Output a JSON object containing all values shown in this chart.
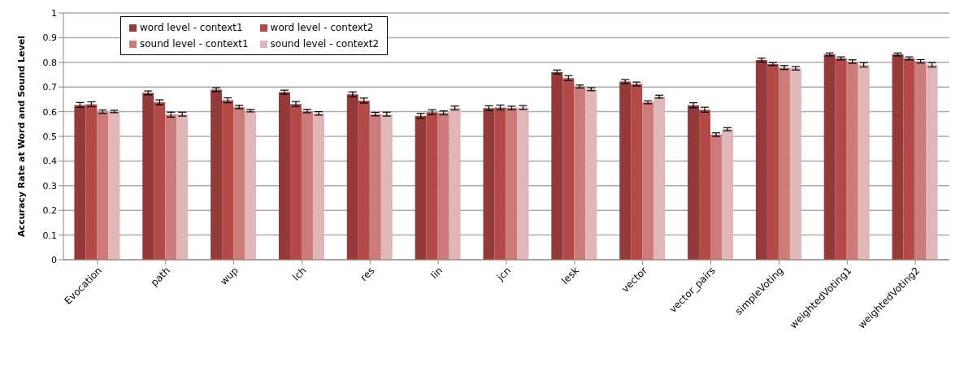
{
  "chart_data": {
    "type": "bar",
    "ylabel": "Accuracy Rate at Word and Sound Level",
    "categories": [
      "Evocation",
      "path",
      "wup",
      "lch",
      "res",
      "lin",
      "jcn",
      "lesk",
      "vector",
      "vector_pairs",
      "simpleVoting",
      "weightedVoting1",
      "weightedVoting2"
    ],
    "series": [
      {
        "name": "word level - context1",
        "color": "#953a3a",
        "values": [
          0.627,
          0.676,
          0.689,
          0.679,
          0.67,
          0.583,
          0.614,
          0.761,
          0.722,
          0.626,
          0.809,
          0.832,
          0.832
        ],
        "errors": [
          0.01,
          0.008,
          0.008,
          0.008,
          0.01,
          0.01,
          0.01,
          0.008,
          0.008,
          0.01,
          0.008,
          0.006,
          0.006
        ]
      },
      {
        "name": "word level - context2",
        "color": "#b34a48",
        "values": [
          0.63,
          0.638,
          0.646,
          0.631,
          0.645,
          0.598,
          0.617,
          0.736,
          0.712,
          0.608,
          0.793,
          0.816,
          0.816
        ],
        "errors": [
          0.01,
          0.01,
          0.01,
          0.01,
          0.01,
          0.01,
          0.01,
          0.01,
          0.008,
          0.01,
          0.006,
          0.006,
          0.006
        ]
      },
      {
        "name": "sound level - context1",
        "color": "#cc7b7a",
        "values": [
          0.6,
          0.588,
          0.619,
          0.603,
          0.59,
          0.595,
          0.615,
          0.702,
          0.638,
          0.507,
          0.779,
          0.803,
          0.804
        ],
        "errors": [
          0.007,
          0.01,
          0.007,
          0.007,
          0.007,
          0.008,
          0.007,
          0.006,
          0.006,
          0.007,
          0.008,
          0.007,
          0.007
        ]
      },
      {
        "name": "sound level - context2",
        "color": "#e0b6b6",
        "values": [
          0.601,
          0.59,
          0.604,
          0.593,
          0.59,
          0.615,
          0.617,
          0.691,
          0.661,
          0.529,
          0.776,
          0.79,
          0.79
        ],
        "errors": [
          0.005,
          0.008,
          0.005,
          0.007,
          0.008,
          0.008,
          0.008,
          0.006,
          0.006,
          0.006,
          0.007,
          0.009,
          0.009
        ]
      }
    ],
    "ylim": [
      0,
      1
    ],
    "yticks": [
      0,
      0.1,
      0.2,
      0.3,
      0.4,
      0.5,
      0.6,
      0.7,
      0.8,
      0.9,
      1
    ],
    "grid": "y",
    "legend": "top left"
  }
}
